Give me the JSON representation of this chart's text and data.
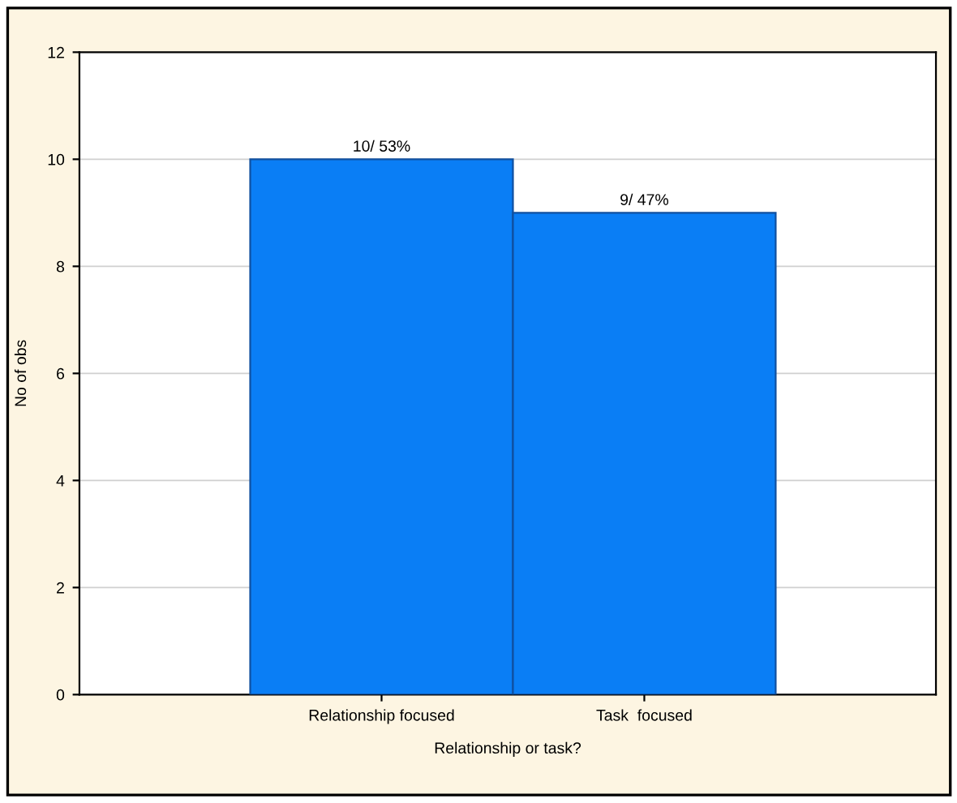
{
  "chart_data": {
    "type": "bar",
    "xlabel": "Relationship or task?",
    "ylabel": "No of obs",
    "categories": [
      "Relationship focused",
      "Task  focused"
    ],
    "values": [
      10,
      9
    ],
    "color": "#0a7ef5",
    "value_labels": [
      "10/ 53%",
      "9/ 47%"
    ],
    "ylim": [
      0,
      12
    ],
    "yticks": [
      0,
      2,
      4,
      6,
      8,
      10,
      12
    ],
    "grid": "y"
  }
}
